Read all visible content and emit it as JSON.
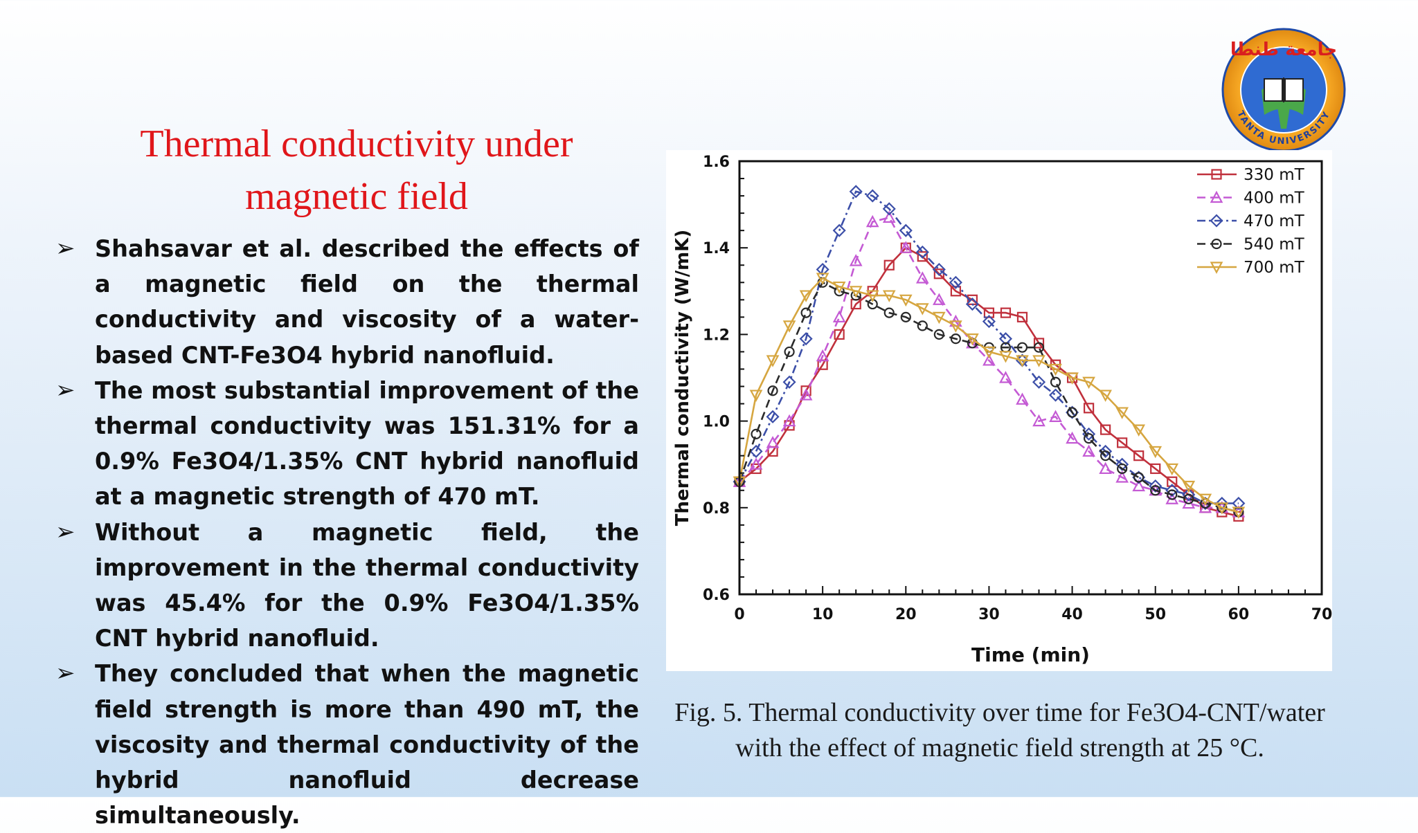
{
  "slide": {
    "title_line1": "Thermal conductivity under",
    "title_line2": "magnetic field",
    "bullets": [
      "Shahsavar et al. described the effects of a magnetic field on the thermal conductivity and viscosity of a water-based CNT-Fe3O4 hybrid nanofluid.",
      "The most substantial improvement of the thermal conductivity was 151.31% for a 0.9% Fe3O4/1.35% CNT hybrid nanofluid at a magnetic strength of 470 mT.",
      "Without a magnetic field, the improvement in the thermal conductivity was 45.4% for the 0.9% Fe3O4/1.35% CNT hybrid nanofluid.",
      " They concluded that when the magnetic field strength is more than 490 mT, the viscosity and thermal conductivity of the hybrid nanofluid decrease simultaneously."
    ],
    "bullet_marker": "➢",
    "caption": "Fig. 5. Thermal conductivity over time for Fe3O4-CNT/water with the effect of magnetic field strength at 25 °C."
  },
  "logo": {
    "icon": "tanta-university-logo-icon",
    "arabic_text": "جامعة طنطا",
    "english_text": "TANTA UNIVERSITY"
  },
  "chart_data": {
    "type": "line",
    "xlabel": "Time (min)",
    "ylabel": "Thermal conductivity (W/mK)",
    "xlim": [
      0,
      70
    ],
    "ylim": [
      0.6,
      1.6
    ],
    "xticks": [
      0,
      10,
      20,
      30,
      40,
      50,
      60,
      70
    ],
    "yticks": [
      0.6,
      0.8,
      1.0,
      1.2,
      1.4,
      1.6
    ],
    "legend_position": "top-right",
    "grid": false,
    "series": [
      {
        "name": "330 mT",
        "color": "#c0303c",
        "dash": "solid",
        "marker": "square",
        "x": [
          0,
          2,
          4,
          6,
          8,
          10,
          12,
          14,
          16,
          18,
          20,
          22,
          24,
          26,
          28,
          30,
          32,
          34,
          36,
          38,
          40,
          42,
          44,
          46,
          48,
          50,
          52,
          54,
          56,
          58,
          60
        ],
        "y": [
          0.86,
          0.89,
          0.93,
          0.99,
          1.07,
          1.13,
          1.2,
          1.27,
          1.3,
          1.36,
          1.4,
          1.38,
          1.34,
          1.3,
          1.28,
          1.25,
          1.25,
          1.24,
          1.18,
          1.13,
          1.1,
          1.03,
          0.98,
          0.95,
          0.92,
          0.89,
          0.86,
          0.83,
          0.8,
          0.79,
          0.78
        ]
      },
      {
        "name": "400 mT",
        "color": "#c45ad4",
        "dash": "dash",
        "marker": "triangle",
        "x": [
          0,
          2,
          4,
          6,
          8,
          10,
          12,
          14,
          16,
          18,
          20,
          22,
          24,
          26,
          28,
          30,
          32,
          34,
          36,
          38,
          40,
          42,
          44,
          46,
          48,
          50,
          52,
          54,
          56,
          58,
          60
        ],
        "y": [
          0.86,
          0.9,
          0.95,
          1.0,
          1.06,
          1.15,
          1.24,
          1.37,
          1.46,
          1.47,
          1.4,
          1.33,
          1.28,
          1.23,
          1.18,
          1.14,
          1.1,
          1.05,
          1.0,
          1.01,
          0.96,
          0.93,
          0.89,
          0.87,
          0.85,
          0.84,
          0.82,
          0.81,
          0.8,
          0.8,
          0.79
        ]
      },
      {
        "name": "470 mT",
        "color": "#3c4fa8",
        "dash": "dashdot",
        "marker": "diamond",
        "x": [
          0,
          2,
          4,
          6,
          8,
          10,
          12,
          14,
          16,
          18,
          20,
          22,
          24,
          26,
          28,
          30,
          32,
          34,
          36,
          38,
          40,
          42,
          44,
          46,
          48,
          50,
          52,
          54,
          56,
          58,
          60
        ],
        "y": [
          0.86,
          0.93,
          1.01,
          1.09,
          1.19,
          1.35,
          1.44,
          1.53,
          1.52,
          1.49,
          1.44,
          1.39,
          1.35,
          1.32,
          1.27,
          1.23,
          1.19,
          1.14,
          1.09,
          1.06,
          1.02,
          0.97,
          0.93,
          0.9,
          0.87,
          0.85,
          0.84,
          0.83,
          0.81,
          0.81,
          0.81
        ]
      },
      {
        "name": "540 mT",
        "color": "#2a2a2a",
        "dash": "dash",
        "marker": "circle",
        "x": [
          0,
          2,
          4,
          6,
          8,
          10,
          12,
          14,
          16,
          18,
          20,
          22,
          24,
          26,
          28,
          30,
          32,
          34,
          36,
          38,
          40,
          42,
          44,
          46,
          48,
          50,
          52,
          54,
          56,
          58,
          60
        ],
        "y": [
          0.86,
          0.97,
          1.07,
          1.16,
          1.25,
          1.32,
          1.3,
          1.29,
          1.27,
          1.25,
          1.24,
          1.22,
          1.2,
          1.19,
          1.18,
          1.17,
          1.17,
          1.17,
          1.17,
          1.09,
          1.02,
          0.96,
          0.92,
          0.89,
          0.87,
          0.84,
          0.83,
          0.82,
          0.81,
          0.8,
          0.79
        ]
      },
      {
        "name": "700 mT",
        "color": "#d6a640",
        "dash": "solid",
        "marker": "triangle-down",
        "x": [
          0,
          2,
          4,
          6,
          8,
          10,
          12,
          14,
          16,
          18,
          20,
          22,
          24,
          26,
          28,
          30,
          32,
          34,
          36,
          38,
          40,
          42,
          44,
          46,
          48,
          50,
          52,
          54,
          56,
          58,
          60
        ],
        "y": [
          0.86,
          1.06,
          1.14,
          1.22,
          1.29,
          1.33,
          1.31,
          1.3,
          1.29,
          1.29,
          1.28,
          1.26,
          1.24,
          1.22,
          1.19,
          1.16,
          1.15,
          1.14,
          1.14,
          1.12,
          1.1,
          1.09,
          1.06,
          1.02,
          0.98,
          0.93,
          0.89,
          0.85,
          0.82,
          0.8,
          0.79
        ]
      }
    ]
  }
}
